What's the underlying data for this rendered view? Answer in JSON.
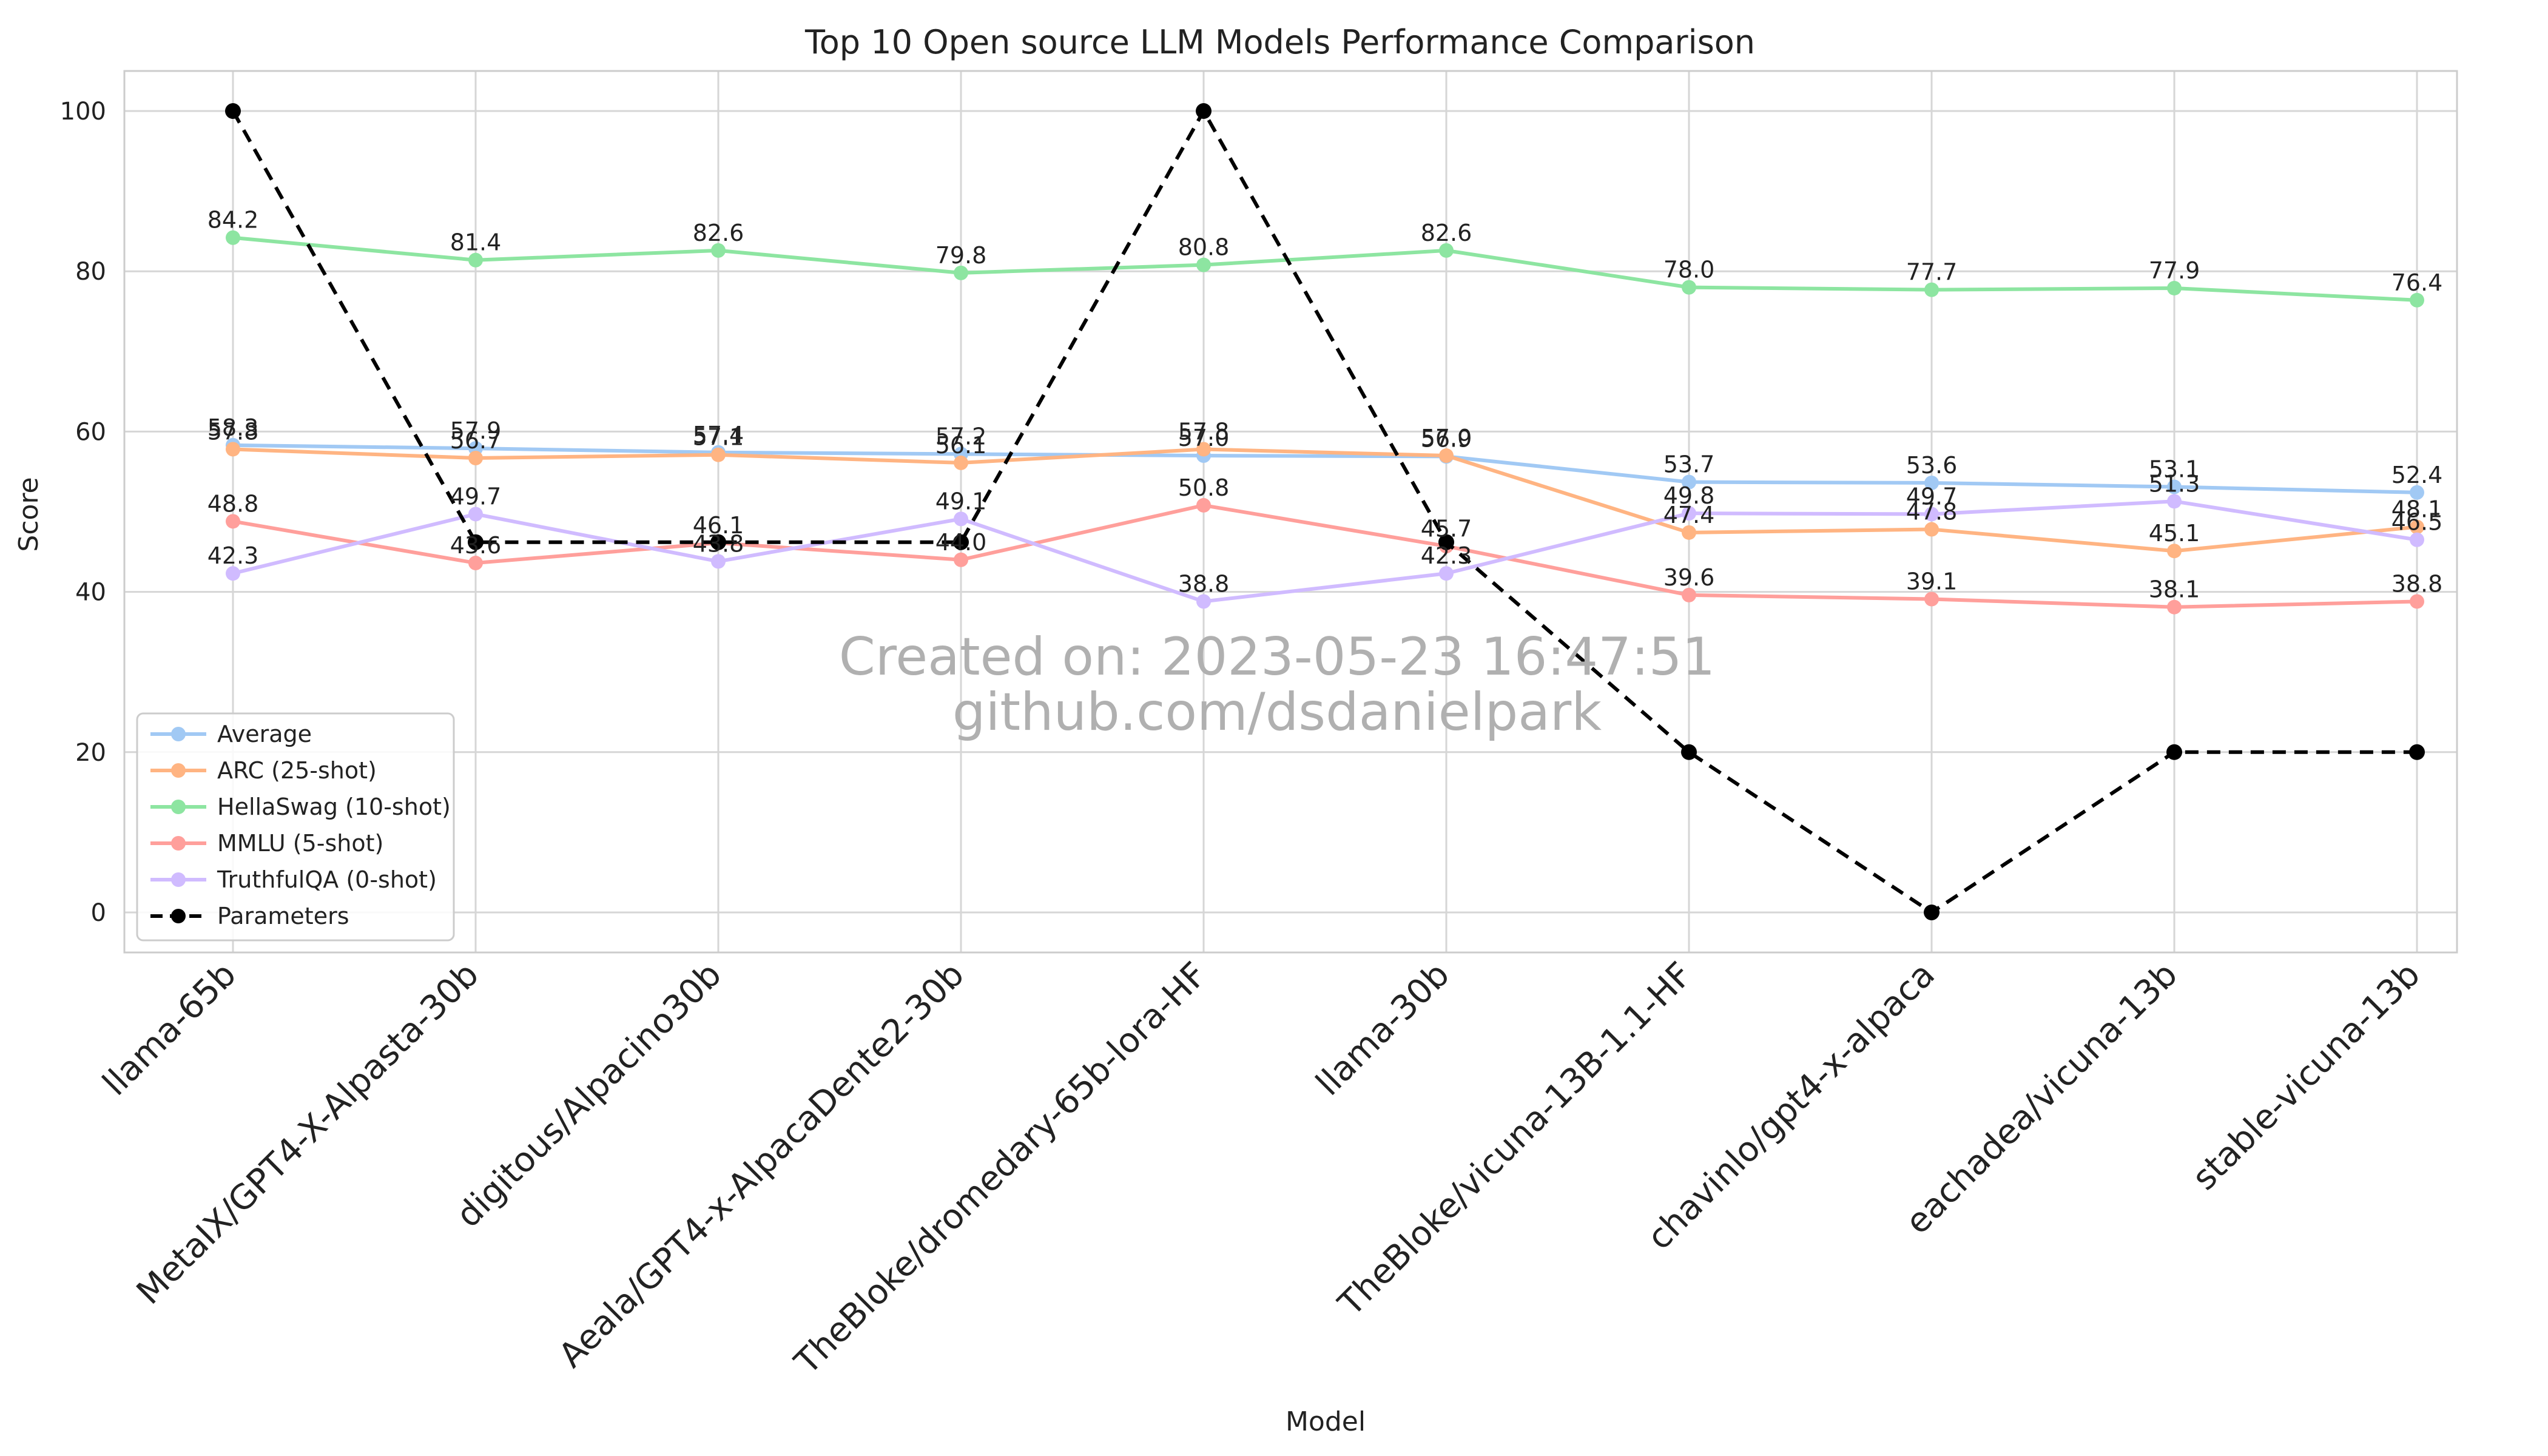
{
  "chart_data": {
    "type": "line",
    "title": "Top 10 Open source LLM Models Performance Comparison",
    "xlabel": "Model",
    "ylabel": "Score",
    "ylim": [
      -5,
      105
    ],
    "yticks": [
      0,
      20,
      40,
      60,
      80,
      100
    ],
    "grid": true,
    "legend_position": "lower-left",
    "categories": [
      "llama-65b",
      "MetaIX/GPT4-X-Alpasta-30b",
      "digitous/Alpacino30b",
      "Aeala/GPT4-x-AlpacaDente2-30b",
      "TheBloke/dromedary-65b-lora-HF",
      "llama-30b",
      "TheBloke/vicuna-13B-1.1-HF",
      "chavinlo/gpt4-x-alpaca",
      "eachadea/vicuna-13b",
      "stable-vicuna-13b"
    ],
    "series": [
      {
        "name": "Average",
        "color": "#a1c9f4",
        "dashed": false,
        "values": [
          58.3,
          57.9,
          57.4,
          57.2,
          57.0,
          56.9,
          53.7,
          53.6,
          53.1,
          52.4
        ],
        "labels": [
          "58.3",
          "57.9",
          "57.4",
          "57.2",
          "57.0",
          "56.9",
          "53.7",
          "53.6",
          "53.1",
          "52.4"
        ]
      },
      {
        "name": "ARC (25-shot)",
        "color": "#ffb482",
        "dashed": false,
        "values": [
          57.8,
          56.7,
          57.1,
          56.1,
          57.8,
          57.0,
          47.4,
          47.8,
          45.1,
          48.1
        ],
        "labels": [
          "57.8",
          "56.7",
          "57.1",
          "56.1",
          "57.8",
          "57.0",
          "47.4",
          "47.8",
          "45.1",
          "48.1"
        ]
      },
      {
        "name": "HellaSwag (10-shot)",
        "color": "#8de5a1",
        "dashed": false,
        "values": [
          84.2,
          81.4,
          82.6,
          79.8,
          80.8,
          82.6,
          78.0,
          77.7,
          77.9,
          76.4
        ],
        "labels": [
          "84.2",
          "81.4",
          "82.6",
          "79.8",
          "80.8",
          "82.6",
          "78.0",
          "77.7",
          "77.9",
          "76.4"
        ]
      },
      {
        "name": "MMLU (5-shot)",
        "color": "#ff9f9b",
        "dashed": false,
        "values": [
          48.8,
          43.6,
          46.1,
          44.0,
          50.8,
          45.7,
          39.6,
          39.1,
          38.1,
          38.8
        ],
        "labels": [
          "48.8",
          "43.6",
          "46.1",
          "44.0",
          "50.8",
          "45.7",
          "39.6",
          "39.1",
          "38.1",
          "38.8"
        ]
      },
      {
        "name": "TruthfulQA (0-shot)",
        "color": "#d0bbff",
        "dashed": false,
        "values": [
          42.3,
          49.7,
          43.8,
          49.1,
          38.8,
          42.3,
          49.8,
          49.7,
          51.3,
          46.5
        ],
        "labels": [
          "42.3",
          "49.7",
          "43.8",
          "49.1",
          "38.8",
          "42.3",
          "49.8",
          "49.7",
          "51.3",
          "46.5"
        ]
      },
      {
        "name": "Parameters",
        "color": "#000000",
        "dashed": true,
        "values": [
          100,
          46.2,
          46.2,
          46.2,
          100,
          46.2,
          20,
          0,
          20,
          20
        ],
        "labels": []
      }
    ],
    "annotations": [
      "Created on: 2023-05-23 16:47:51",
      "github.com/dsdanielpark"
    ]
  }
}
